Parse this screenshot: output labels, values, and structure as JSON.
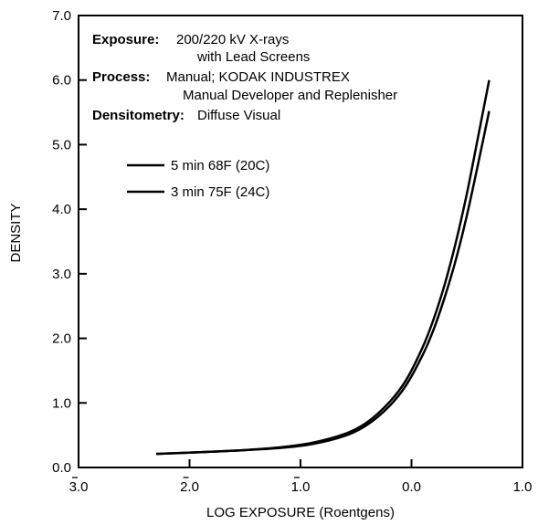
{
  "chart_data": {
    "type": "line",
    "xlabel": "LOG EXPOSURE (Roentgens)",
    "ylabel": "DENSITY",
    "xlim": [
      -3.0,
      1.0
    ],
    "ylim": [
      0.0,
      7.0
    ],
    "x_ticks": [
      -3,
      -2,
      -1,
      0,
      1
    ],
    "x_tick_labels": [
      "3.0",
      "2.0",
      "1.0",
      "0.0",
      "1.0"
    ],
    "x_tick_bar": [
      true,
      true,
      true,
      false,
      false
    ],
    "y_ticks": [
      0,
      1,
      2,
      3,
      4,
      5,
      6,
      7
    ],
    "y_tick_labels": [
      "0.0",
      "1.0",
      "2.0",
      "3.0",
      "4.0",
      "5.0",
      "6.0",
      "7.0"
    ],
    "grid": false,
    "legend_position": "upper-left",
    "annotations": [
      {
        "label": "Exposure:",
        "lines": [
          "200/220 kV X-rays",
          "with Lead Screens"
        ]
      },
      {
        "label": "Process:",
        "lines": [
          "Manual; KODAK INDUSTREX",
          "Manual Developer and Replenisher"
        ]
      },
      {
        "label": "Densitometry:",
        "lines": [
          "Diffuse Visual"
        ]
      }
    ],
    "series": [
      {
        "name": "5 min 68F (20C)",
        "x": [
          -2.3,
          -2.0,
          -1.6,
          -1.2,
          -0.9,
          -0.6,
          -0.4,
          -0.2,
          -0.05,
          0.1,
          0.2,
          0.3,
          0.4,
          0.5,
          0.6,
          0.7
        ],
        "values": [
          0.21,
          0.23,
          0.26,
          0.31,
          0.38,
          0.52,
          0.7,
          1.01,
          1.35,
          1.86,
          2.3,
          2.84,
          3.49,
          4.25,
          5.12,
          6.0
        ]
      },
      {
        "name": "3 min 75F (24C)",
        "x": [
          -2.3,
          -2.0,
          -1.6,
          -1.2,
          -0.9,
          -0.6,
          -0.4,
          -0.2,
          -0.05,
          0.1,
          0.2,
          0.3,
          0.4,
          0.5,
          0.6,
          0.7
        ],
        "values": [
          0.21,
          0.23,
          0.26,
          0.3,
          0.36,
          0.49,
          0.66,
          0.95,
          1.27,
          1.74,
          2.14,
          2.64,
          3.22,
          3.91,
          4.7,
          5.52
        ]
      }
    ]
  }
}
